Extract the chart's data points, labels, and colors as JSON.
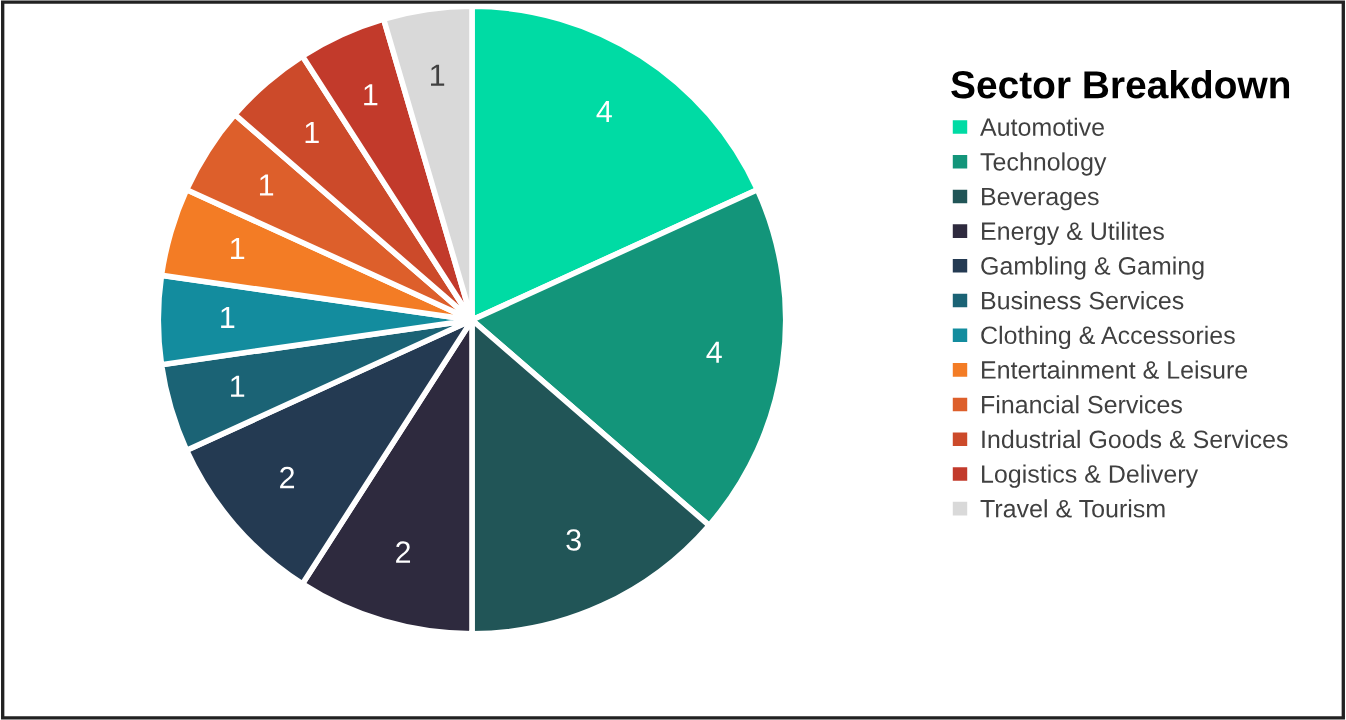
{
  "chart_data": {
    "type": "pie",
    "legend_title": "Sector Breakdown",
    "legend": "right",
    "data_labels": true,
    "categories": [
      "Automotive",
      "Technology",
      "Beverages",
      "Energy & Utilites",
      "Gambling & Gaming",
      "Business Services",
      "Clothing & Accessories",
      "Entertainment & Leisure",
      "Financial Services",
      "Industrial Goods & Services",
      "Logistics & Delivery",
      "Travel & Tourism"
    ],
    "values": [
      4,
      4,
      3,
      2,
      2,
      1,
      1,
      1,
      1,
      1,
      1,
      1
    ],
    "colors": [
      "#00dba4",
      "#13957a",
      "#215557",
      "#2e2a3e",
      "#243a52",
      "#1b6375",
      "#138c9e",
      "#f37c25",
      "#dd5f2b",
      "#cc4a2a",
      "#c23a2b",
      "#d9d9d9"
    ]
  }
}
